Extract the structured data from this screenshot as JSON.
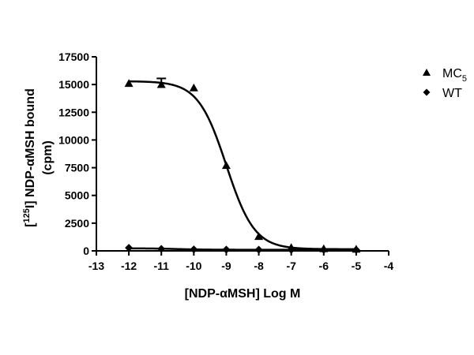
{
  "chart_data": {
    "type": "scatter",
    "xlabel": "[NDP-αMSH] Log M",
    "ylabel_line1_prefix": "[",
    "ylabel_line1_sup": "125",
    "ylabel_line1_suffix": "I] NDP-αMSH bound",
    "ylabel_line2": "(cpm)",
    "xlim": [
      -13,
      -4
    ],
    "ylim": [
      0,
      17500
    ],
    "x_ticks": [
      -13,
      -12,
      -11,
      -10,
      -9,
      -8,
      -7,
      -6,
      -5,
      -4
    ],
    "y_ticks": [
      0,
      2500,
      5000,
      7500,
      10000,
      12500,
      15000,
      17500
    ],
    "legend_position": "right",
    "series": [
      {
        "legend_base": "MC",
        "legend_sub": "5",
        "marker": "triangle",
        "color": "#000000",
        "points": [
          {
            "x": -12,
            "y": 15100
          },
          {
            "x": -11,
            "y": 15000,
            "err": 550
          },
          {
            "x": -10,
            "y": 14700
          },
          {
            "x": -9,
            "y": 7700
          },
          {
            "x": -8,
            "y": 1300
          },
          {
            "x": -7,
            "y": 300
          },
          {
            "x": -6,
            "y": 200
          },
          {
            "x": -5,
            "y": 150
          }
        ],
        "fit": {
          "top": 15300,
          "bottom": 150,
          "logEC50": -9.0,
          "hill": -1.0
        }
      },
      {
        "legend_base": "WT",
        "marker": "diamond",
        "color": "#000000",
        "points": [
          {
            "x": -12,
            "y": 280
          },
          {
            "x": -11,
            "y": 180
          },
          {
            "x": -10,
            "y": 130
          },
          {
            "x": -9,
            "y": 120
          },
          {
            "x": -8,
            "y": 110
          },
          {
            "x": -7,
            "y": 100
          },
          {
            "x": -6,
            "y": 100
          },
          {
            "x": -5,
            "y": 100
          }
        ],
        "fit": {
          "top": 230,
          "bottom": 100,
          "logEC50": -10.5,
          "hill": -1.0
        }
      }
    ]
  }
}
